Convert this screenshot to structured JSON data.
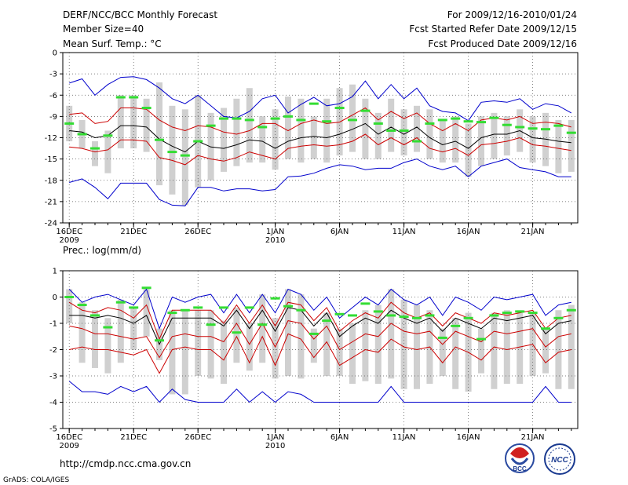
{
  "header": {
    "title_left": [
      "DERF/NCC/BCC Monthly Forecast",
      "Member Size=40",
      "Mean Surf. Temp.: °C"
    ],
    "title_right": [
      "For 2009/12/16-2010/01/24",
      "Fcst Started Refer Date 2009/12/15",
      "Fcst Produced Date 2009/12/16"
    ]
  },
  "footer": {
    "url": "http://cmdp.ncc.cma.gov.cn",
    "credit": "GrADS: COLA/IGES",
    "logo_bcc": "BCC",
    "logo_ncc": "NCC"
  },
  "colors": {
    "max_min": "#0000cc",
    "spread": "#cc0000",
    "mean": "#000000",
    "median": "#33dd33",
    "box": "#d0d0d0",
    "grid": "#555555"
  },
  "chart_data": [
    {
      "type": "line",
      "title": "Mean Surf. Temp.: °C",
      "ylabel": "Mean Surf. Temp.: °C",
      "ylim": [
        -24,
        0
      ],
      "yticks": [
        0,
        -3,
        -6,
        -9,
        -12,
        -15,
        -18,
        -21,
        -24
      ],
      "xlim": [
        0.5,
        40.5
      ],
      "x": [
        1,
        2,
        3,
        4,
        5,
        6,
        7,
        8,
        9,
        10,
        11,
        12,
        13,
        14,
        15,
        16,
        17,
        18,
        19,
        20,
        21,
        22,
        23,
        24,
        25,
        26,
        27,
        28,
        29,
        30,
        31,
        32,
        33,
        34,
        35,
        36,
        37,
        38,
        39,
        40
      ],
      "x_tick_positions": [
        1,
        6,
        11,
        17,
        22,
        27,
        32,
        37
      ],
      "x_tick_labels": [
        "16DEC",
        "21DEC",
        "26DEC",
        "1JAN",
        "6JAN",
        "11JAN",
        "16JAN",
        "21JAN"
      ],
      "x_sub_labels": [
        {
          "at": 1,
          "text": "2009"
        },
        {
          "at": 17,
          "text": "2010"
        }
      ],
      "series": [
        {
          "name": "max",
          "values": [
            -4.3,
            -3.7,
            -6.0,
            -4.5,
            -3.5,
            -3.4,
            -3.8,
            -5.0,
            -6.5,
            -7.2,
            -6.0,
            -7.5,
            -9.0,
            -9.2,
            -8.3,
            -6.5,
            -6.0,
            -8.5,
            -7.3,
            -6.3,
            -7.5,
            -7.2,
            -6.2,
            -4.0,
            -6.5,
            -4.5,
            -6.5,
            -5.0,
            -7.5,
            -8.3,
            -8.5,
            -9.6,
            -7.0,
            -6.8,
            -7.0,
            -6.5,
            -8.0,
            -7.2,
            -7.5,
            -8.5
          ]
        },
        {
          "name": "upper",
          "values": [
            -8.7,
            -8.5,
            -10.0,
            -9.7,
            -7.8,
            -7.8,
            -8.0,
            -9.5,
            -10.5,
            -11.0,
            -10.3,
            -10.5,
            -11.2,
            -11.5,
            -11.0,
            -10.0,
            -10.0,
            -11.0,
            -10.0,
            -9.5,
            -10.0,
            -9.8,
            -8.8,
            -7.8,
            -9.5,
            -8.3,
            -9.3,
            -8.5,
            -10.0,
            -11.0,
            -10.0,
            -11.0,
            -9.5,
            -9.2,
            -9.5,
            -9.0,
            -10.0,
            -9.8,
            -10.0,
            -10.5
          ]
        },
        {
          "name": "mean",
          "values": [
            -11.0,
            -11.2,
            -12.0,
            -11.7,
            -10.3,
            -10.3,
            -10.5,
            -12.2,
            -13.2,
            -14.0,
            -12.5,
            -13.3,
            -13.5,
            -13.0,
            -12.3,
            -12.5,
            -13.5,
            -12.5,
            -12.0,
            -11.8,
            -12.0,
            -11.5,
            -10.8,
            -10.0,
            -11.5,
            -10.5,
            -11.5,
            -10.5,
            -12.0,
            -13.0,
            -12.5,
            -13.5,
            -12.0,
            -11.5,
            -11.5,
            -11.0,
            -12.0,
            -12.2,
            -12.5,
            -12.7
          ]
        },
        {
          "name": "lower",
          "values": [
            -13.3,
            -13.5,
            -14.0,
            -13.7,
            -12.3,
            -12.3,
            -12.5,
            -14.8,
            -15.2,
            -15.8,
            -14.5,
            -15.0,
            -15.3,
            -14.8,
            -14.0,
            -14.5,
            -15.0,
            -13.5,
            -13.2,
            -13.0,
            -13.2,
            -13.0,
            -12.5,
            -11.5,
            -13.0,
            -12.0,
            -13.0,
            -12.0,
            -13.5,
            -14.0,
            -13.5,
            -14.5,
            -13.0,
            -12.8,
            -12.5,
            -12.0,
            -13.0,
            -13.2,
            -13.5,
            -13.8
          ]
        },
        {
          "name": "min",
          "values": [
            -18.3,
            -17.8,
            -19.0,
            -20.6,
            -18.4,
            -18.4,
            -18.4,
            -20.7,
            -21.5,
            -21.6,
            -19.0,
            -19.0,
            -19.5,
            -19.2,
            -19.2,
            -19.5,
            -19.3,
            -17.5,
            -17.4,
            -17.0,
            -16.3,
            -15.8,
            -16.0,
            -16.5,
            -16.3,
            -16.3,
            -15.5,
            -15.0,
            -16.0,
            -16.5,
            -16.0,
            -17.5,
            -16.0,
            -15.5,
            -15.0,
            -16.2,
            -16.5,
            -16.8,
            -17.5,
            -17.5
          ]
        },
        {
          "name": "box_top",
          "values": [
            -7.5,
            -9.5,
            -12.5,
            -11.0,
            -6.0,
            -6.0,
            -6.5,
            -4.2,
            -7.5,
            -8.0,
            -6.0,
            -8.5,
            -7.8,
            -6.5,
            -5.0,
            -9.0,
            -8.0,
            -6.2,
            -6.5,
            -9.0,
            -6.5,
            -5.0,
            -4.5,
            -6.5,
            -8.5,
            -6.5,
            -8.0,
            -7.5,
            -8.0,
            -9.5,
            -9.0,
            -10.0,
            -9.0,
            -8.5,
            -9.0,
            -8.0,
            -9.0,
            -8.5,
            -9.5,
            -9.5
          ]
        },
        {
          "name": "box_bottom",
          "values": [
            -12.5,
            -13.5,
            -16.0,
            -17.0,
            -13.5,
            -13.5,
            -14.0,
            -18.7,
            -20.0,
            -21.5,
            -19.0,
            -18.0,
            -16.8,
            -16.0,
            -15.5,
            -15.5,
            -16.5,
            -15.0,
            -15.5,
            -15.0,
            -15.5,
            -14.5,
            -14.0,
            -15.0,
            -15.0,
            -14.0,
            -14.5,
            -14.0,
            -15.0,
            -15.5,
            -15.5,
            -17.5,
            -16.0,
            -15.0,
            -14.5,
            -14.0,
            -15.5,
            -16.0,
            -17.0,
            -16.8
          ]
        },
        {
          "name": "median",
          "values": [
            -10.0,
            -11.5,
            -13.5,
            -11.7,
            -6.3,
            -6.3,
            -7.8,
            -12.3,
            -14.0,
            -14.5,
            -12.5,
            -10.3,
            -9.3,
            -9.3,
            -9.5,
            -10.5,
            -9.3,
            -9.0,
            -9.5,
            -7.2,
            -9.7,
            -7.8,
            -9.5,
            -8.2,
            -10.0,
            -11.0,
            -11.0,
            -12.5,
            -10.0,
            -9.5,
            -9.3,
            -9.7,
            -9.8,
            -9.2,
            -10.2,
            -10.5,
            -10.7,
            -10.8,
            -10.3,
            -11.3
          ]
        }
      ]
    },
    {
      "type": "line",
      "title": "Prec.: log(mm/d)",
      "ylabel": "Prec.: log(mm/d)",
      "ylim": [
        -5,
        1
      ],
      "yticks": [
        1,
        0,
        -1,
        -2,
        -3,
        -4,
        -5
      ],
      "xlim": [
        0.5,
        40.5
      ],
      "x": [
        1,
        2,
        3,
        4,
        5,
        6,
        7,
        8,
        9,
        10,
        11,
        12,
        13,
        14,
        15,
        16,
        17,
        18,
        19,
        20,
        21,
        22,
        23,
        24,
        25,
        26,
        27,
        28,
        29,
        30,
        31,
        32,
        33,
        34,
        35,
        36,
        37,
        38,
        39,
        40
      ],
      "x_tick_positions": [
        1,
        6,
        11,
        17,
        22,
        27,
        32,
        37
      ],
      "x_tick_labels": [
        "16DEC",
        "21DEC",
        "26DEC",
        "1JAN",
        "6JAN",
        "11JAN",
        "16JAN",
        "21JAN"
      ],
      "x_sub_labels": [
        {
          "at": 1,
          "text": "2009"
        },
        {
          "at": 17,
          "text": "2010"
        }
      ],
      "series": [
        {
          "name": "max",
          "values": [
            0.3,
            -0.2,
            0.0,
            0.1,
            -0.1,
            -0.3,
            0.3,
            -1.2,
            0.0,
            -0.2,
            0.0,
            0.1,
            -0.6,
            0.1,
            -0.6,
            0.1,
            -0.6,
            0.3,
            0.1,
            -0.5,
            0.0,
            -0.8,
            -0.4,
            0.0,
            -0.3,
            0.3,
            -0.1,
            -0.3,
            0.0,
            -0.7,
            0.0,
            -0.2,
            -0.5,
            0.0,
            -0.1,
            0.0,
            0.1,
            -0.7,
            -0.3,
            -0.2
          ]
        },
        {
          "name": "upper",
          "values": [
            -0.2,
            -0.5,
            -0.6,
            -0.4,
            -0.5,
            -0.8,
            -0.3,
            -1.6,
            -0.5,
            -0.5,
            -0.5,
            -0.5,
            -1.0,
            -0.3,
            -1.0,
            -0.3,
            -1.1,
            -0.2,
            -0.3,
            -0.9,
            -0.4,
            -1.3,
            -0.9,
            -0.6,
            -0.8,
            -0.2,
            -0.6,
            -0.8,
            -0.6,
            -1.1,
            -0.6,
            -0.8,
            -1.0,
            -0.6,
            -0.7,
            -0.6,
            -0.5,
            -1.2,
            -0.8,
            -0.7
          ]
        },
        {
          "name": "mean",
          "values": [
            -0.7,
            -0.7,
            -0.8,
            -0.7,
            -0.8,
            -1.0,
            -0.7,
            -1.8,
            -0.8,
            -0.8,
            -0.8,
            -0.8,
            -1.1,
            -0.5,
            -1.2,
            -0.5,
            -1.3,
            -0.4,
            -0.5,
            -1.1,
            -0.6,
            -1.5,
            -1.1,
            -0.8,
            -1.0,
            -0.5,
            -0.8,
            -1.0,
            -0.8,
            -1.3,
            -0.8,
            -1.0,
            -1.2,
            -0.8,
            -0.9,
            -0.8,
            -0.7,
            -1.4,
            -1.0,
            -0.9
          ]
        },
        {
          "name": "lower",
          "values": [
            -1.1,
            -1.2,
            -1.4,
            -1.4,
            -1.5,
            -1.6,
            -1.5,
            -2.3,
            -1.5,
            -1.4,
            -1.5,
            -1.5,
            -1.7,
            -1.0,
            -1.8,
            -1.0,
            -1.9,
            -0.9,
            -1.0,
            -1.6,
            -1.1,
            -2.0,
            -1.7,
            -1.4,
            -1.5,
            -1.0,
            -1.3,
            -1.4,
            -1.3,
            -1.8,
            -1.3,
            -1.5,
            -1.7,
            -1.3,
            -1.4,
            -1.3,
            -1.2,
            -1.9,
            -1.5,
            -1.4
          ]
        },
        {
          "name": "lower_p",
          "values": [
            -2.0,
            -1.9,
            -2.0,
            -2.0,
            -2.1,
            -2.2,
            -2.0,
            -2.9,
            -2.0,
            -1.9,
            -2.0,
            -2.0,
            -2.4,
            -1.5,
            -2.5,
            -1.5,
            -2.6,
            -1.4,
            -1.6,
            -2.3,
            -1.7,
            -2.6,
            -2.3,
            -2.0,
            -2.1,
            -1.6,
            -1.9,
            -2.0,
            -1.9,
            -2.5,
            -1.9,
            -2.1,
            -2.4,
            -1.9,
            -2.0,
            -1.9,
            -1.8,
            -2.5,
            -2.1,
            -2.0
          ]
        },
        {
          "name": "min",
          "values": [
            -3.2,
            -3.6,
            -3.6,
            -3.7,
            -3.4,
            -3.6,
            -3.4,
            -4.0,
            -3.5,
            -3.9,
            -4.0,
            -4.0,
            -4.0,
            -3.5,
            -4.0,
            -3.6,
            -4.0,
            -3.6,
            -3.7,
            -4.0,
            -4.0,
            -4.0,
            -4.0,
            -4.0,
            -4.0,
            -3.4,
            -4.0,
            -4.0,
            -4.0,
            -4.0,
            -4.0,
            -4.0,
            -4.0,
            -4.0,
            -4.0,
            -4.0,
            -4.0,
            -3.4,
            -4.0,
            -4.0
          ]
        },
        {
          "name": "box_top",
          "values": [
            0.3,
            -0.2,
            -0.5,
            -0.8,
            -0.1,
            -0.4,
            0.3,
            -1.2,
            -0.5,
            -0.5,
            -0.5,
            -0.5,
            -0.9,
            -0.4,
            -1.0,
            0.1,
            -0.8,
            0.3,
            0.1,
            -1.2,
            -0.6,
            -1.2,
            -1.0,
            -0.5,
            -0.3,
            0.3,
            -0.1,
            -0.3,
            -0.5,
            -1.2,
            -0.8,
            -0.6,
            -1.2,
            -0.6,
            -0.5,
            -0.5,
            -0.6,
            -1.2,
            -0.5,
            -0.3
          ]
        },
        {
          "name": "box_bottom",
          "values": [
            -1.0,
            -2.5,
            -2.7,
            -2.9,
            -2.5,
            -2.0,
            -1.5,
            -2.4,
            -3.7,
            -3.7,
            -3.0,
            -3.1,
            -3.3,
            -2.5,
            -2.8,
            -2.5,
            -3.1,
            -3.0,
            -3.1,
            -2.5,
            -3.0,
            -3.0,
            -3.3,
            -3.2,
            -3.3,
            -3.1,
            -3.5,
            -3.5,
            -3.3,
            -3.0,
            -3.5,
            -3.6,
            -2.9,
            -3.5,
            -3.3,
            -3.3,
            -3.0,
            -2.9,
            -3.5,
            -3.5
          ]
        },
        {
          "name": "median",
          "values": [
            0.0,
            -0.3,
            -0.7,
            -1.15,
            -0.2,
            -0.4,
            0.35,
            -1.65,
            -0.6,
            -0.5,
            -0.4,
            -1.05,
            -0.4,
            -1.35,
            -0.4,
            -1.05,
            -0.05,
            -0.35,
            -0.5,
            -1.4,
            -0.9,
            -0.65,
            -0.7,
            -0.25,
            -0.55,
            -0.7,
            -0.75,
            -0.8,
            -0.7,
            -1.55,
            -1.1,
            -0.8,
            -1.6,
            -0.7,
            -0.6,
            -0.55,
            -0.6,
            -1.2,
            -0.8,
            -0.5
          ]
        }
      ]
    }
  ]
}
